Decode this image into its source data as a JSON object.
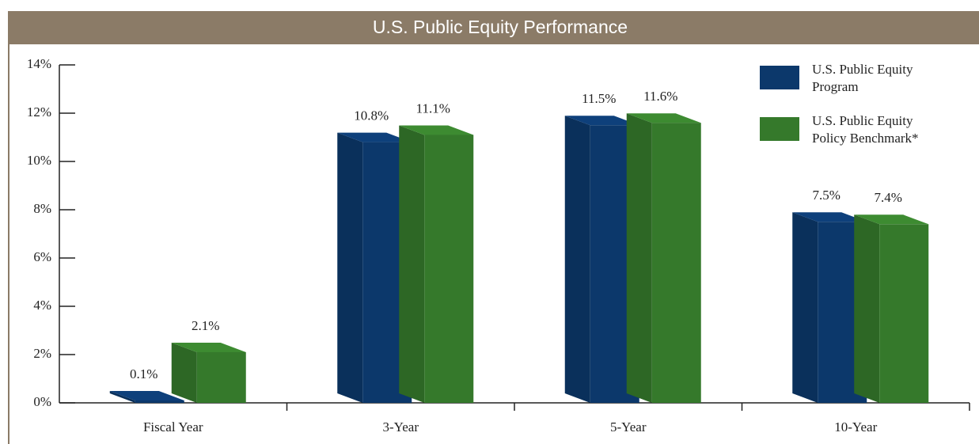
{
  "chart_data": {
    "type": "bar3d",
    "title": "U.S. Public Equity Performance",
    "categories": [
      "Fiscal Year",
      "3-Year",
      "5-Year",
      "10-Year"
    ],
    "series": [
      {
        "name": "U.S. Public Equity Program",
        "color": "#0c386b",
        "values": [
          0.1,
          10.8,
          11.5,
          7.5
        ],
        "value_labels": [
          "0.1%",
          "10.8%",
          "11.5%",
          "7.5%"
        ]
      },
      {
        "name": "U.S. Public Equity Policy Benchmark*",
        "color": "#35792b",
        "values": [
          2.1,
          11.1,
          11.6,
          7.4
        ],
        "value_labels": [
          "2.1%",
          "11.1%",
          "11.6%",
          "7.4%"
        ]
      }
    ],
    "ylim": [
      0,
      14
    ],
    "yticks": [
      {
        "value": 0,
        "label": "0%"
      },
      {
        "value": 2,
        "label": "2%"
      },
      {
        "value": 4,
        "label": "4%"
      },
      {
        "value": 6,
        "label": "6%"
      },
      {
        "value": 8,
        "label": "8%"
      },
      {
        "value": 10,
        "label": "10%"
      },
      {
        "value": 12,
        "label": "12%"
      },
      {
        "value": 14,
        "label": "14%"
      }
    ],
    "legend": "upper right"
  }
}
